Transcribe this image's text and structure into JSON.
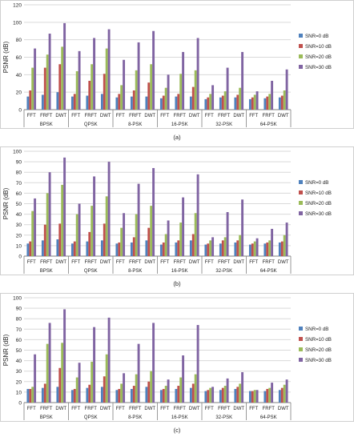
{
  "colors": {
    "snr0": "#4f81bd",
    "snr10": "#c0504d",
    "snr20": "#9bbb59",
    "snr30": "#8064a2",
    "grid": "#d9d9d9",
    "axis": "#808080",
    "text": "#222222"
  },
  "chart_data": [
    {
      "type": "bar",
      "caption": "(a)",
      "ylabel": "PSNR (dB)",
      "ylim": [
        0,
        120
      ],
      "yticks": [
        0,
        20,
        40,
        60,
        80,
        100,
        120
      ],
      "grid": true,
      "legend_position": "right",
      "groups": [
        "BPSK",
        "QPSK",
        "8-PSK",
        "16-PSK",
        "32-PSK",
        "64-PSK"
      ],
      "methods": [
        "FFT",
        "FRFT",
        "DWT"
      ],
      "series": [
        {
          "name": "SNR=0 dB",
          "values": [
            15,
            17,
            20,
            15,
            16,
            18,
            14,
            15,
            15,
            13,
            15,
            15,
            12,
            14,
            14,
            12,
            13,
            14
          ]
        },
        {
          "name": "SNR=10 dB",
          "values": [
            22,
            48,
            52,
            18,
            33,
            41,
            18,
            22,
            31,
            16,
            18,
            26,
            14,
            16,
            17,
            14,
            15,
            16
          ]
        },
        {
          "name": "SNR=20 dB",
          "values": [
            48,
            63,
            72,
            44,
            52,
            70,
            28,
            45,
            52,
            25,
            41,
            45,
            18,
            21,
            25,
            17,
            18,
            22
          ]
        },
        {
          "name": "SNR=30 dB",
          "values": [
            70,
            87,
            99,
            67,
            82,
            92,
            57,
            77,
            90,
            40,
            66,
            82,
            28,
            48,
            66,
            21,
            33,
            46
          ]
        }
      ]
    },
    {
      "type": "bar",
      "caption": "(b)",
      "ylabel": "PSNR (dB)",
      "ylim": [
        0,
        100
      ],
      "yticks": [
        0,
        10,
        20,
        30,
        40,
        50,
        60,
        70,
        80,
        90,
        100
      ],
      "grid": true,
      "legend_position": "right",
      "groups": [
        "BPSK",
        "QPSK",
        "8-PSK",
        "16-PSK",
        "32-PSK",
        "64-PSK"
      ],
      "methods": [
        "FFT",
        "FRFT",
        "DWT"
      ],
      "series": [
        {
          "name": "SNR=0 dB",
          "values": [
            12,
            15,
            16,
            12,
            14,
            15,
            12,
            13,
            15,
            11,
            13,
            15,
            11,
            12,
            13,
            11,
            12,
            13
          ]
        },
        {
          "name": "SNR=10 dB",
          "values": [
            14,
            30,
            31,
            14,
            23,
            31,
            13,
            18,
            27,
            13,
            15,
            21,
            12,
            15,
            15,
            12,
            13,
            14
          ]
        },
        {
          "name": "SNR=20 dB",
          "values": [
            43,
            60,
            68,
            40,
            48,
            57,
            27,
            40,
            48,
            21,
            32,
            41,
            15,
            18,
            20,
            14,
            15,
            20
          ]
        },
        {
          "name": "SNR=30 dB",
          "values": [
            55,
            80,
            94,
            50,
            76,
            90,
            41,
            69,
            84,
            34,
            56,
            78,
            18,
            42,
            54,
            17,
            26,
            32
          ]
        }
      ]
    },
    {
      "type": "bar",
      "caption": "(c)",
      "ylabel": "PSNR (dB)",
      "ylim": [
        0,
        100
      ],
      "yticks": [
        0,
        10,
        20,
        30,
        40,
        50,
        60,
        70,
        80,
        90,
        100
      ],
      "grid": true,
      "legend_position": "right",
      "groups": [
        "BPSK",
        "QPSK",
        "8-PSK",
        "16-PSK",
        "32-PSK",
        "64-PSK"
      ],
      "methods": [
        "FFT",
        "FRFT",
        "DWT"
      ],
      "series": [
        {
          "name": "SNR=0 dB",
          "values": [
            13,
            14,
            15,
            12,
            14,
            15,
            12,
            13,
            15,
            12,
            13,
            14,
            11,
            12,
            13,
            11,
            11,
            12
          ]
        },
        {
          "name": "SNR=10 dB",
          "values": [
            13,
            18,
            33,
            13,
            17,
            25,
            13,
            16,
            20,
            13,
            16,
            18,
            12,
            14,
            15,
            11,
            13,
            14
          ]
        },
        {
          "name": "SNR=20 dB",
          "values": [
            15,
            56,
            57,
            24,
            39,
            46,
            18,
            27,
            30,
            16,
            24,
            27,
            14,
            16,
            18,
            12,
            14,
            17
          ]
        },
        {
          "name": "SNR=30 dB",
          "values": [
            46,
            76,
            89,
            38,
            72,
            81,
            28,
            56,
            76,
            22,
            45,
            74,
            15,
            23,
            29,
            12,
            19,
            22
          ]
        }
      ]
    }
  ]
}
